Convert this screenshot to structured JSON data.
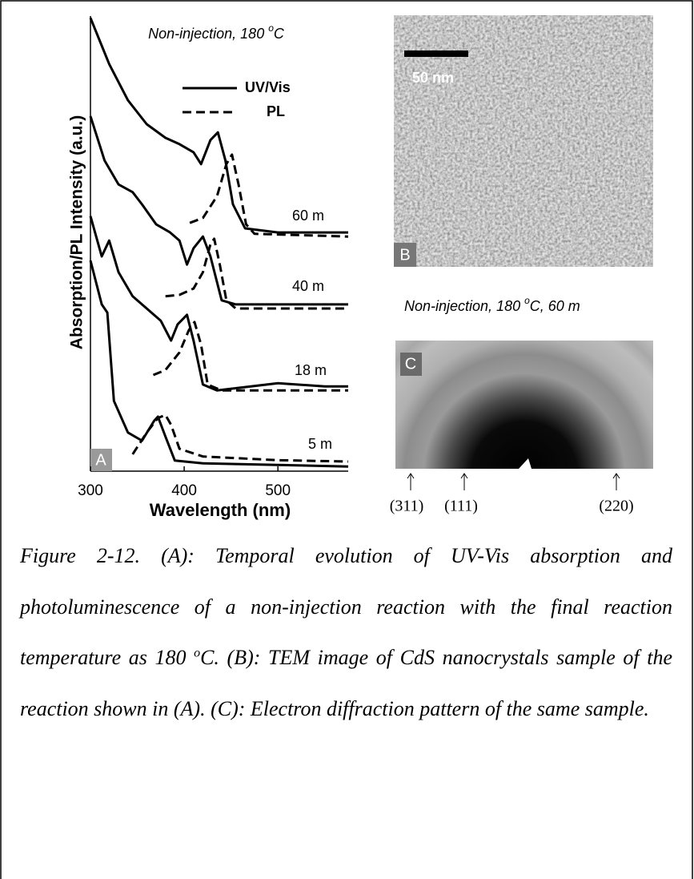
{
  "chart_data": {
    "type": "line",
    "title": {
      "before": "Non-injection, 180 ",
      "sup": "o",
      "after": "C"
    },
    "xlabel": "Wavelength (nm)",
    "ylabel": "Absorption/PL Intensity (a.u.)",
    "panel_label": "A",
    "xlim": [
      300,
      575
    ],
    "xticks": [
      300,
      400,
      500
    ],
    "ylim": [
      0,
      100
    ],
    "legend": [
      {
        "label": "UV/Vis",
        "dash": "solid"
      },
      {
        "label": "PL",
        "dash": "dashed"
      }
    ],
    "color": "#000000",
    "curves": [
      {
        "label": "60 m",
        "absorption": {
          "x": [
            300,
            320,
            340,
            360,
            380,
            395,
            410,
            418,
            428,
            436,
            444,
            452,
            465,
            500,
            575
          ],
          "values": [
            99.6,
            89.4,
            81.4,
            76.1,
            73.1,
            71.7,
            69.9,
            67.3,
            72.6,
            74.3,
            68.1,
            58.4,
            53.1,
            52.2,
            52.2
          ]
        },
        "pl": {
          "x": [
            406,
            420,
            435,
            445,
            451,
            458,
            466,
            475,
            575
          ],
          "values": [
            54.3,
            55.4,
            60.2,
            67.3,
            69.4,
            62.8,
            54.0,
            51.9,
            51.3
          ]
        }
      },
      {
        "label": "40 m",
        "absorption": {
          "x": [
            300,
            315,
            330,
            345,
            355,
            370,
            385,
            395,
            403,
            410,
            420,
            428,
            440,
            455,
            575
          ],
          "values": [
            77.9,
            68.1,
            62.8,
            61.1,
            58.4,
            54.0,
            52.2,
            50.4,
            45.1,
            48.7,
            51.3,
            46.9,
            37.2,
            36.3,
            36.3
          ]
        },
        "pl": {
          "x": [
            380,
            395,
            410,
            420,
            428,
            432,
            438,
            445,
            455,
            575
          ],
          "values": [
            38.1,
            38.4,
            39.8,
            43.4,
            49.6,
            50.8,
            45.1,
            37.2,
            35.4,
            35.4
          ]
        }
      },
      {
        "label": "18 m",
        "absorption": {
          "x": [
            300,
            312,
            320,
            330,
            345,
            360,
            375,
            386,
            393,
            403,
            410,
            420,
            435,
            500,
            550,
            575
          ],
          "values": [
            55.8,
            46.9,
            50.4,
            43.4,
            38.1,
            35.4,
            32.7,
            28.3,
            31.9,
            34.0,
            28.3,
            18.6,
            17.3,
            18.9,
            18.2,
            18.2
          ]
        },
        "pl": {
          "x": [
            367,
            380,
            395,
            405,
            411,
            418,
            425,
            440,
            575
          ],
          "values": [
            20.7,
            21.8,
            25.7,
            30.6,
            32.4,
            27.4,
            18.6,
            17.3,
            17.3
          ]
        }
      },
      {
        "label": "5 m",
        "absorption": {
          "x": [
            300,
            312,
            318,
            325,
            340,
            355,
            368,
            372,
            380,
            390,
            420,
            575
          ],
          "values": [
            46.0,
            36.3,
            34.5,
            15.0,
            8.0,
            6.2,
            10.6,
            11.5,
            7.1,
            1.8,
            1.2,
            0.5
          ]
        },
        "pl": {
          "x": [
            345,
            360,
            372,
            380,
            386,
            395,
            420,
            500,
            575
          ],
          "values": [
            3.2,
            8.0,
            11.2,
            11.9,
            9.7,
            4.4,
            2.7,
            1.9,
            1.6
          ]
        }
      }
    ]
  },
  "panel_b": {
    "label": "B",
    "scale_bar": "50 nm"
  },
  "panel_c": {
    "label": "C",
    "title": {
      "before": "Non-injection, 180 ",
      "sup": "o",
      "after": "C, 60 m"
    },
    "peaks": [
      "(311)",
      "(111)",
      "(220)"
    ]
  },
  "caption": {
    "before": "Figure 2-12. (A): Temporal evolution of UV-Vis absorption and photoluminescence of a non-injection reaction with the final reaction temperature as 180 ",
    "sup": "o",
    "after": "C. (B): TEM image of CdS nanocrystals sample of the reaction shown in (A). (C): Electron diffraction pattern of the same sample."
  }
}
